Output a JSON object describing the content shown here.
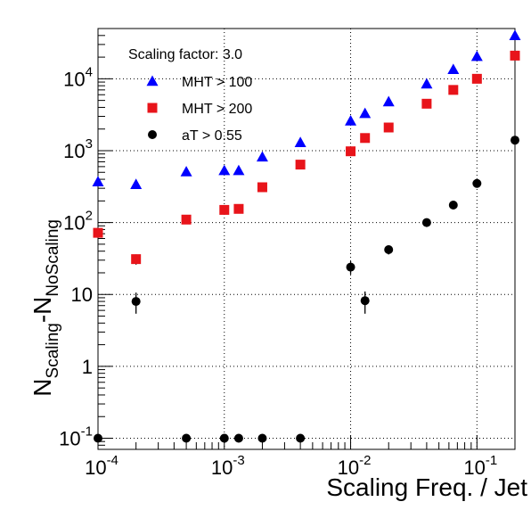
{
  "chart_data": {
    "type": "scatter",
    "annotation": "Scaling factor: 3.0",
    "xlabel": "Scaling Freq. / Jet",
    "ylabel_main": "N",
    "ylabel_sub1": "Scaling",
    "ylabel_dash": "-N",
    "ylabel_sub2": "NoScaling",
    "x_scale": "log",
    "y_scale": "log",
    "xlim": [
      0.0001,
      0.2
    ],
    "ylim": [
      0.07,
      50000
    ],
    "grid": true,
    "legend_position": "top-left",
    "x_ticks": [
      {
        "value": 0.0001,
        "base": "10",
        "exp": "-4"
      },
      {
        "value": 0.001,
        "base": "10",
        "exp": "-3"
      },
      {
        "value": 0.01,
        "base": "10",
        "exp": "-2"
      },
      {
        "value": 0.1,
        "base": "10",
        "exp": "-1"
      }
    ],
    "y_ticks": [
      {
        "value": 0.1,
        "base": "10",
        "exp": "-1"
      },
      {
        "value": 1,
        "base": "1",
        "exp": ""
      },
      {
        "value": 10,
        "base": "10",
        "exp": ""
      },
      {
        "value": 100,
        "base": "10",
        "exp": "2"
      },
      {
        "value": 1000,
        "base": "10",
        "exp": "3"
      },
      {
        "value": 10000,
        "base": "10",
        "exp": "4"
      }
    ],
    "series": [
      {
        "name": "MHT > 100",
        "marker": "triangle",
        "color": "#0000ff",
        "points": [
          {
            "x": 0.0001,
            "y": 370
          },
          {
            "x": 0.0002,
            "y": 340
          },
          {
            "x": 0.0005,
            "y": 510
          },
          {
            "x": 0.001,
            "y": 530
          },
          {
            "x": 0.0013,
            "y": 530
          },
          {
            "x": 0.002,
            "y": 820
          },
          {
            "x": 0.004,
            "y": 1300
          },
          {
            "x": 0.01,
            "y": 2600
          },
          {
            "x": 0.013,
            "y": 3300
          },
          {
            "x": 0.02,
            "y": 4800
          },
          {
            "x": 0.04,
            "y": 8500
          },
          {
            "x": 0.065,
            "y": 13500
          },
          {
            "x": 0.1,
            "y": 20500
          },
          {
            "x": 0.2,
            "y": 40000
          }
        ]
      },
      {
        "name": "MHT > 200",
        "marker": "square",
        "color": "#e8141a",
        "points": [
          {
            "x": 0.0001,
            "y": 72,
            "err": 8
          },
          {
            "x": 0.0002,
            "y": 31,
            "err": 5
          },
          {
            "x": 0.0005,
            "y": 110
          },
          {
            "x": 0.001,
            "y": 150
          },
          {
            "x": 0.0013,
            "y": 155
          },
          {
            "x": 0.002,
            "y": 310
          },
          {
            "x": 0.004,
            "y": 640
          },
          {
            "x": 0.01,
            "y": 980
          },
          {
            "x": 0.013,
            "y": 1500
          },
          {
            "x": 0.02,
            "y": 2100
          },
          {
            "x": 0.04,
            "y": 4500
          },
          {
            "x": 0.065,
            "y": 7000
          },
          {
            "x": 0.1,
            "y": 10000
          },
          {
            "x": 0.2,
            "y": 21000
          }
        ]
      },
      {
        "name": "aT > 0.55",
        "marker": "circle",
        "color": "#000000",
        "points": [
          {
            "x": 0.0001,
            "y": 0.1
          },
          {
            "x": 0.0002,
            "y": 8,
            "err": 2.6
          },
          {
            "x": 0.0005,
            "y": 0.1
          },
          {
            "x": 0.001,
            "y": 0.1
          },
          {
            "x": 0.0013,
            "y": 0.1
          },
          {
            "x": 0.002,
            "y": 0.1
          },
          {
            "x": 0.004,
            "y": 0.1
          },
          {
            "x": 0.01,
            "y": 24,
            "err": 5
          },
          {
            "x": 0.013,
            "y": 8.2,
            "err": 2.8
          },
          {
            "x": 0.02,
            "y": 42,
            "err": 6
          },
          {
            "x": 0.04,
            "y": 100
          },
          {
            "x": 0.065,
            "y": 175
          },
          {
            "x": 0.1,
            "y": 350
          },
          {
            "x": 0.2,
            "y": 1400
          }
        ]
      }
    ]
  }
}
